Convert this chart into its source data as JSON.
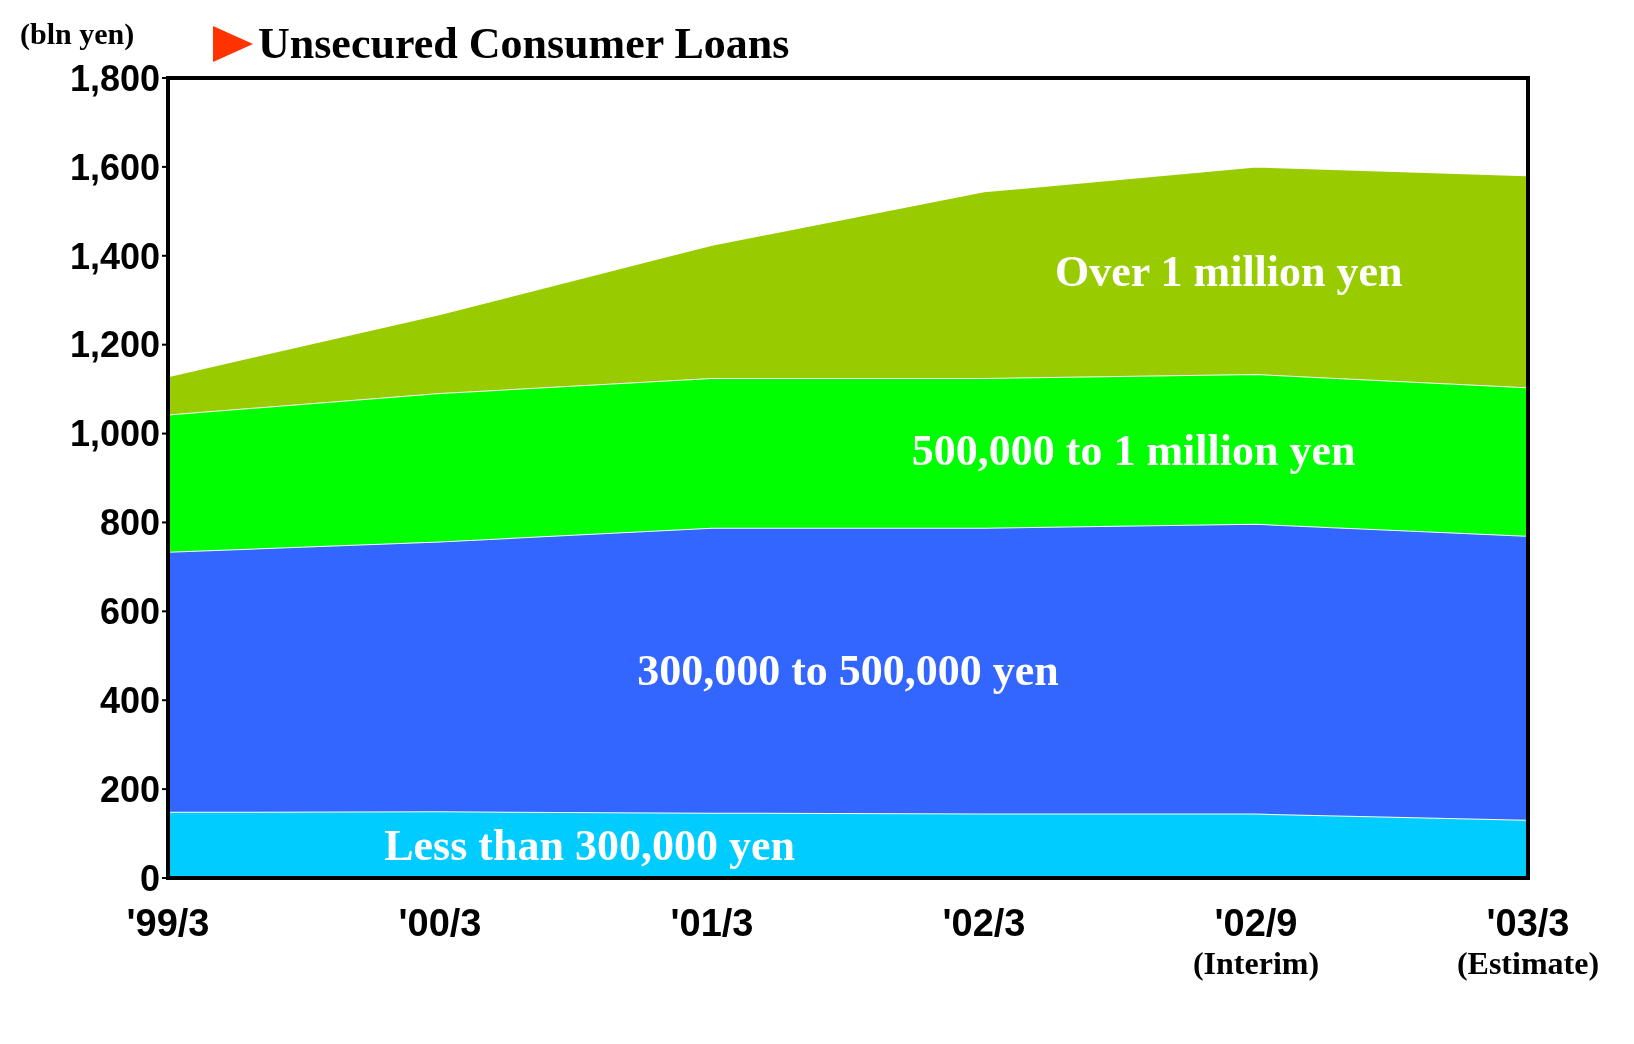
{
  "chart_data": {
    "type": "area",
    "title": "Unsecured Consumer Loans",
    "ylabel": "(bln yen)",
    "categories": [
      "'99/3",
      "'00/3",
      "'01/3",
      "'02/3",
      "'02/9\n(Interim)",
      "'03/3\n(Estimate)"
    ],
    "series": [
      {
        "name": "Less than 300,000 yen",
        "color": "#00ccff",
        "values": [
          149,
          150,
          147,
          145,
          145,
          131
        ]
      },
      {
        "name": "300,000 to 500,000 yen",
        "color": "#3366ff",
        "values": [
          585,
          607,
          641,
          643,
          652,
          639
        ]
      },
      {
        "name": "500,000 to 1 million yen",
        "color": "#00ff00",
        "values": [
          309,
          334,
          337,
          337,
          337,
          334
        ]
      },
      {
        "name": "Over 1 million yen",
        "color": "#99cc00",
        "values": [
          86,
          178,
          300,
          420,
          467,
          477
        ]
      }
    ],
    "ylim": [
      0,
      1800
    ],
    "yticks": [
      0,
      {
        "value": 200,
        "label": "200"
      },
      {
        "value": 400,
        "label": "400"
      },
      {
        "value": 600,
        "label": "600"
      },
      {
        "value": 800,
        "label": "800"
      },
      {
        "value": 1000,
        "label": "1,000"
      },
      {
        "value": 1200,
        "label": "1,200"
      },
      {
        "value": 1400,
        "label": "1,400"
      },
      {
        "value": 1600,
        "label": "1,600"
      },
      {
        "value": 1800,
        "label": "1,800"
      }
    ],
    "stacked": true
  }
}
